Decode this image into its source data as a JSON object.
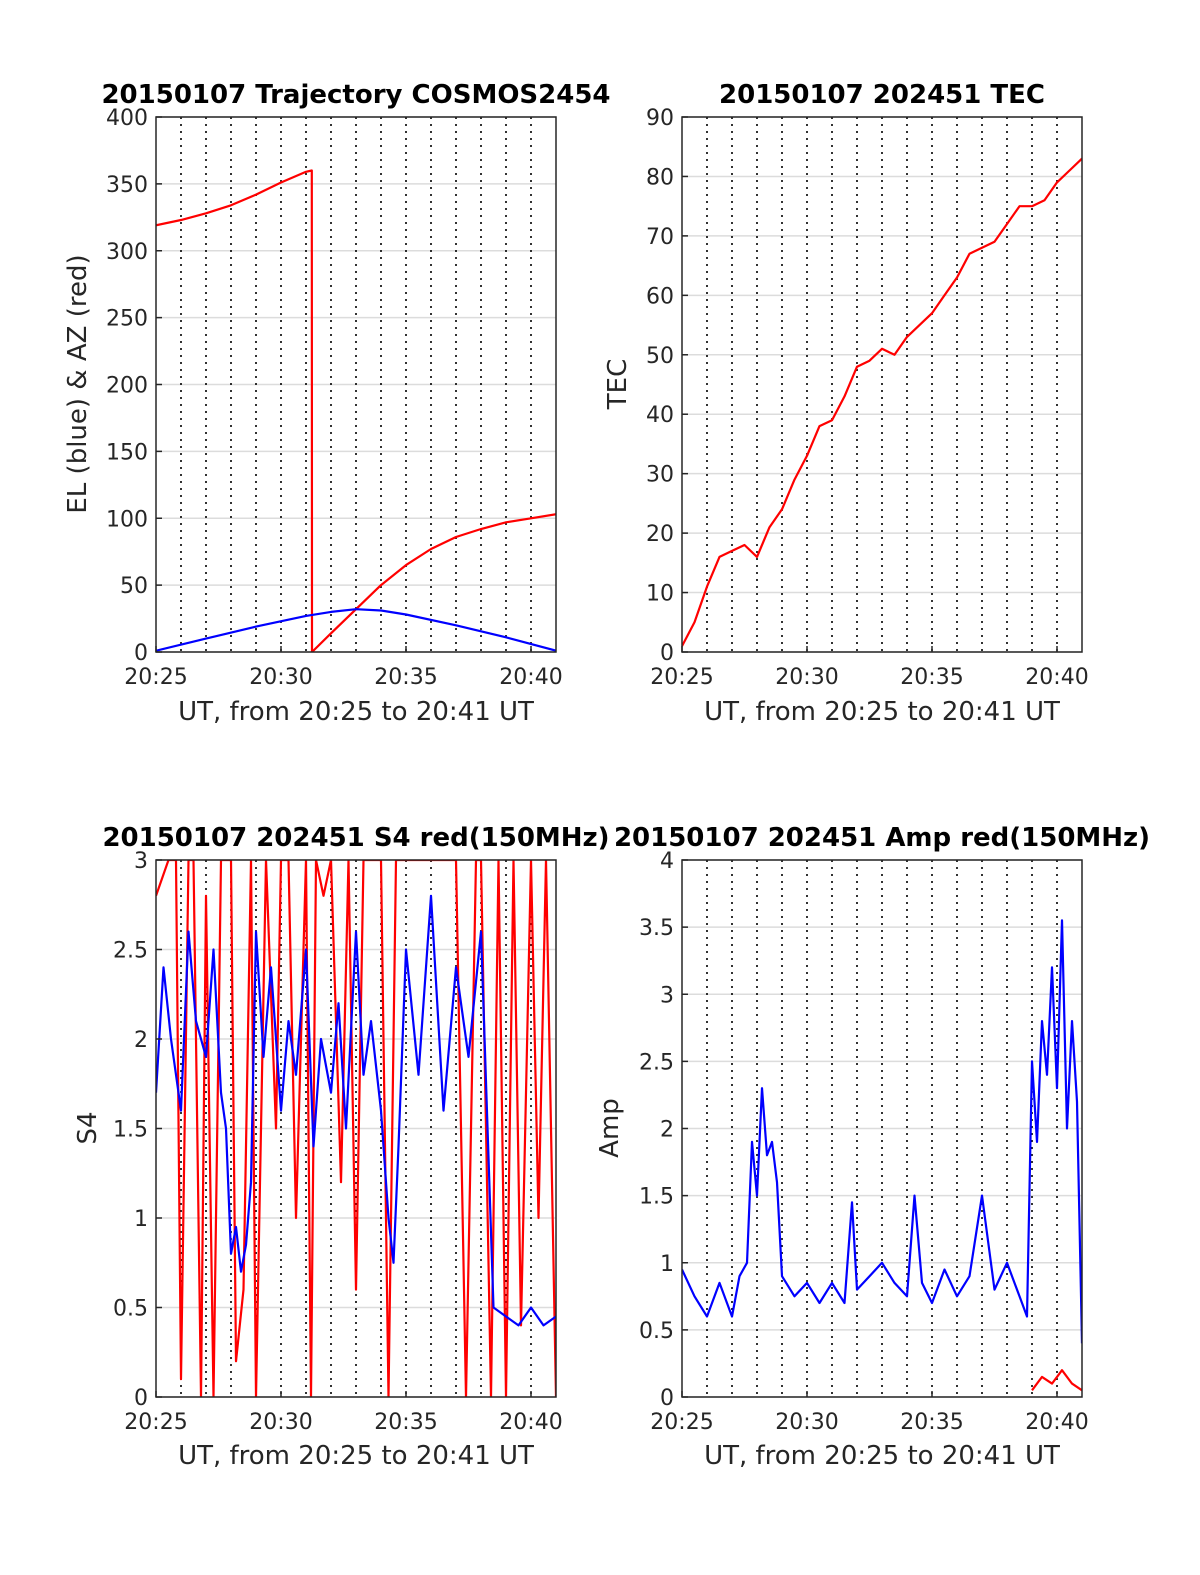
{
  "chart_data": [
    {
      "id": "traj",
      "type": "line",
      "title": "20150107 Trajectory COSMOS2454",
      "xlabel": "UT, from 20:25 to 20:41 UT",
      "ylabel": "EL (blue) & AZ (red)",
      "xlim": [
        0,
        16
      ],
      "ylim": [
        0,
        400
      ],
      "xticks": [
        0,
        5,
        10,
        15
      ],
      "xtick_labels": [
        "20:25",
        "20:30",
        "20:35",
        "20:40"
      ],
      "yticks": [
        0,
        50,
        100,
        150,
        200,
        250,
        300,
        350,
        400
      ],
      "ytick_labels": [
        "0",
        "50",
        "100",
        "150",
        "200",
        "250",
        "300",
        "350",
        "400"
      ],
      "grid": "y solid, x dotted every minute",
      "series": [
        {
          "color": "#ff0000",
          "x": [
            0,
            1,
            2,
            3,
            4,
            5,
            6,
            6.23,
            6.24,
            7,
            8,
            9,
            10,
            11,
            12,
            13,
            14,
            15,
            16
          ],
          "y": [
            319,
            323,
            328,
            334,
            342,
            351,
            359,
            360,
            0,
            14,
            32,
            50,
            65,
            77,
            86,
            92,
            97,
            100,
            103
          ]
        },
        {
          "color": "#0000ff",
          "x": [
            0,
            2,
            4,
            6,
            7,
            8,
            9,
            10,
            12,
            14,
            16
          ],
          "y": [
            1,
            10,
            19,
            27,
            30,
            32,
            31,
            28,
            20,
            11,
            1
          ]
        }
      ]
    },
    {
      "id": "tec",
      "type": "line",
      "title": "20150107 202451 TEC",
      "xlabel": "UT, from 20:25 to 20:41 UT",
      "ylabel": "TEC",
      "xlim": [
        0,
        16
      ],
      "ylim": [
        0,
        90
      ],
      "xticks": [
        0,
        5,
        10,
        15
      ],
      "xtick_labels": [
        "20:25",
        "20:30",
        "20:35",
        "20:40"
      ],
      "yticks": [
        0,
        10,
        20,
        30,
        40,
        50,
        60,
        70,
        80,
        90
      ],
      "ytick_labels": [
        "0",
        "10",
        "20",
        "30",
        "40",
        "50",
        "60",
        "70",
        "80",
        "90"
      ],
      "grid": "y solid, x dotted every minute",
      "series": [
        {
          "color": "#ff0000",
          "x": [
            0,
            0.5,
            1,
            1.5,
            2,
            2.5,
            3,
            3.5,
            4,
            4.5,
            5,
            5.5,
            6,
            6.5,
            7,
            7.5,
            8,
            8.5,
            9,
            9.5,
            10,
            10.5,
            11,
            11.5,
            12,
            12.5,
            13,
            13.5,
            14,
            14.5,
            15,
            15.5,
            16
          ],
          "y": [
            1,
            5,
            11,
            16,
            17,
            18,
            16,
            21,
            24,
            29,
            33,
            38,
            39,
            43,
            48,
            49,
            51,
            50,
            53,
            55,
            57,
            60,
            63,
            67,
            68,
            69,
            72,
            75,
            75,
            76,
            79,
            81,
            83
          ]
        }
      ]
    },
    {
      "id": "s4",
      "type": "line",
      "title": "20150107 202451 S4 red(150MHz)",
      "xlabel": "UT, from 20:25 to 20:41 UT",
      "ylabel": "S4",
      "xlim": [
        0,
        16
      ],
      "ylim": [
        0,
        3
      ],
      "xticks": [
        0,
        5,
        10,
        15
      ],
      "xtick_labels": [
        "20:25",
        "20:30",
        "20:35",
        "20:40"
      ],
      "yticks": [
        0,
        0.5,
        1,
        1.5,
        2,
        2.5,
        3
      ],
      "ytick_labels": [
        "0",
        "0.5",
        "1",
        "1.5",
        "2",
        "2.5",
        "3"
      ],
      "grid": "y solid, x dotted every minute",
      "series": [
        {
          "color": "#ff0000",
          "x": [
            0,
            0.5,
            0.8,
            1,
            1.3,
            1.5,
            1.8,
            2,
            2.3,
            2.6,
            3,
            3.2,
            3.5,
            3.8,
            4,
            4.4,
            4.8,
            5,
            5.3,
            5.6,
            6,
            6.2,
            6.4,
            6.7,
            7,
            7.4,
            7.7,
            8,
            8.3,
            8.7,
            9,
            9.3,
            9.6,
            10,
            10.5,
            11,
            11.5,
            12,
            12.4,
            12.8,
            13,
            13.4,
            13.7,
            14,
            14.3,
            14.6,
            15,
            15.3,
            15.6,
            16
          ],
          "y": [
            2.8,
            3,
            3,
            0.1,
            3,
            3,
            0,
            2.8,
            0,
            3,
            3,
            0.2,
            0.6,
            3,
            0,
            3,
            1.5,
            3,
            3,
            1.0,
            3,
            0,
            3,
            2.8,
            3,
            1.2,
            3,
            0.6,
            3,
            3,
            3,
            0,
            3,
            3,
            3,
            3,
            3,
            3,
            0,
            3,
            3,
            0,
            3,
            0,
            3,
            0.4,
            3,
            1.0,
            3,
            0
          ]
        },
        {
          "color": "#0000ff",
          "x": [
            0,
            0.3,
            0.6,
            1,
            1.3,
            1.6,
            2,
            2.3,
            2.6,
            2.8,
            3,
            3.2,
            3.4,
            3.6,
            3.8,
            4,
            4.3,
            4.6,
            5,
            5.3,
            5.6,
            6,
            6.3,
            6.6,
            7,
            7.3,
            7.6,
            8,
            8.3,
            8.6,
            9,
            9.3,
            9.5,
            9.7,
            10,
            10.5,
            11,
            11.5,
            12,
            12.5,
            13,
            13.5,
            14,
            14.5,
            15,
            15.5,
            16
          ],
          "y": [
            1.7,
            2.4,
            2.0,
            1.6,
            2.6,
            2.1,
            1.9,
            2.5,
            1.7,
            1.5,
            0.8,
            0.95,
            0.7,
            0.85,
            1.2,
            2.6,
            1.9,
            2.4,
            1.6,
            2.1,
            1.8,
            2.5,
            1.4,
            2.0,
            1.7,
            2.2,
            1.5,
            2.6,
            1.8,
            2.1,
            1.6,
            1.0,
            0.75,
            1.4,
            2.5,
            1.8,
            2.8,
            1.6,
            2.4,
            1.9,
            2.6,
            0.5,
            0.45,
            0.4,
            0.5,
            0.4,
            0.45
          ]
        }
      ]
    },
    {
      "id": "amp",
      "type": "line",
      "title": "20150107 202451 Amp red(150MHz)",
      "xlabel": "UT, from 20:25 to 20:41 UT",
      "ylabel": "Amp",
      "xlim": [
        0,
        16
      ],
      "ylim": [
        0,
        4
      ],
      "xticks": [
        0,
        5,
        10,
        15
      ],
      "xtick_labels": [
        "20:25",
        "20:30",
        "20:35",
        "20:40"
      ],
      "yticks": [
        0,
        0.5,
        1,
        1.5,
        2,
        2.5,
        3,
        3.5,
        4
      ],
      "ytick_labels": [
        "0",
        "0.5",
        "1",
        "1.5",
        "2",
        "2.5",
        "3",
        "3.5",
        "4"
      ],
      "grid": "y solid, x dotted every minute",
      "series": [
        {
          "color": "#ff0000",
          "x": [
            14,
            14.4,
            14.8,
            15.2,
            15.6,
            16
          ],
          "y": [
            0.05,
            0.15,
            0.1,
            0.2,
            0.1,
            0.05
          ]
        },
        {
          "color": "#0000ff",
          "x": [
            0,
            0.5,
            1,
            1.5,
            2,
            2.3,
            2.6,
            2.8,
            3,
            3.2,
            3.4,
            3.6,
            3.8,
            4,
            4.5,
            5,
            5.5,
            6,
            6.5,
            6.8,
            7,
            7.5,
            8,
            8,
            8.5,
            9,
            9.3,
            9.6,
            10,
            10.5,
            11,
            11.5,
            12,
            12.5,
            13,
            13.5,
            13.8,
            14,
            14.2,
            14.4,
            14.6,
            14.8,
            15,
            15.2,
            15.4,
            15.6,
            15.8,
            16
          ],
          "y": [
            0.95,
            0.75,
            0.6,
            0.85,
            0.6,
            0.9,
            1.0,
            1.9,
            1.5,
            2.3,
            1.8,
            1.9,
            1.6,
            0.9,
            0.75,
            0.85,
            0.7,
            0.85,
            0.7,
            1.45,
            0.8,
            0.9,
            1.0,
            1.0,
            0.85,
            0.75,
            1.5,
            0.85,
            0.7,
            0.95,
            0.75,
            0.9,
            1.5,
            0.8,
            1.0,
            0.75,
            0.6,
            2.5,
            1.9,
            2.8,
            2.4,
            3.2,
            2.3,
            3.55,
            2.0,
            2.8,
            2.2,
            0.4
          ]
        }
      ]
    }
  ]
}
